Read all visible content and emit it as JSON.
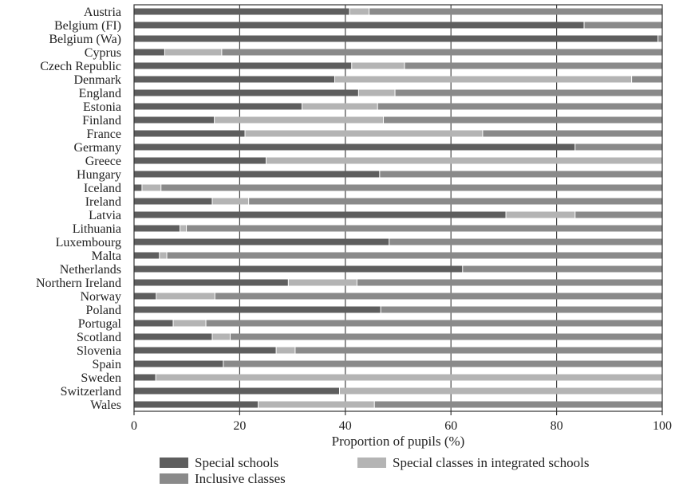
{
  "chart_data": {
    "type": "bar",
    "orientation": "horizontal",
    "stacked": true,
    "categories": [
      "Austria",
      "Belgium (FI)",
      "Belgium (Wa)",
      "Cyprus",
      "Czech Republic",
      "Denmark",
      "England",
      "Estonia",
      "Finland",
      "France",
      "Germany",
      "Greece",
      "Hungary",
      "Iceland",
      "Ireland",
      "Latvia",
      "Lithuania",
      "Luxembourg",
      "Malta",
      "Netherlands",
      "Northern Ireland",
      "Norway",
      "Poland",
      "Portugal",
      "Scotland",
      "Slovenia",
      "Spain",
      "Sweden",
      "Switzerland",
      "Wales"
    ],
    "series": [
      {
        "name": "Special schools",
        "color": "#5e5e5e",
        "values": [
          40.8,
          85.2,
          99.2,
          5.8,
          41.2,
          38.0,
          42.5,
          31.8,
          15.2,
          21.0,
          83.5,
          25.0,
          46.5,
          1.5,
          14.8,
          70.4,
          8.7,
          48.3,
          4.8,
          62.2,
          29.2,
          4.2,
          46.7,
          7.4,
          14.8,
          26.9,
          16.9,
          4.1,
          38.9,
          23.5
        ]
      },
      {
        "name": "Special classes in integrated schools",
        "color": "#b4b4b4",
        "values": [
          3.7,
          0.0,
          0.0,
          10.8,
          10.0,
          56.2,
          6.9,
          14.3,
          32.0,
          45.0,
          0.0,
          75.0,
          0.0,
          3.6,
          6.9,
          13.1,
          1.2,
          0.0,
          1.4,
          0.0,
          13.0,
          11.1,
          0.0,
          6.2,
          3.4,
          3.6,
          0.0,
          95.9,
          61.1,
          22.0
        ]
      },
      {
        "name": "Inclusive classes",
        "color": "#8a8a8a",
        "values": [
          55.5,
          14.8,
          0.8,
          83.4,
          48.8,
          5.8,
          50.6,
          53.9,
          52.8,
          34.0,
          16.5,
          0.0,
          53.5,
          94.9,
          78.3,
          16.5,
          90.1,
          51.7,
          93.8,
          37.8,
          57.8,
          84.7,
          53.3,
          86.4,
          81.8,
          69.5,
          83.1,
          0.0,
          0.0,
          54.5
        ]
      }
    ],
    "x_ticks": [
      "0",
      "20",
      "40",
      "60",
      "80",
      "100"
    ],
    "xlim": [
      0,
      100
    ],
    "xlabel": "Proportion of pupils (%)",
    "ylabel": "",
    "title": "",
    "grid": "vertical lines at 20, 40, 60, 80",
    "legend": {
      "placement": "bottom",
      "entries": [
        "Special schools",
        "Special classes in integrated schools",
        "Inclusive classes"
      ]
    }
  }
}
